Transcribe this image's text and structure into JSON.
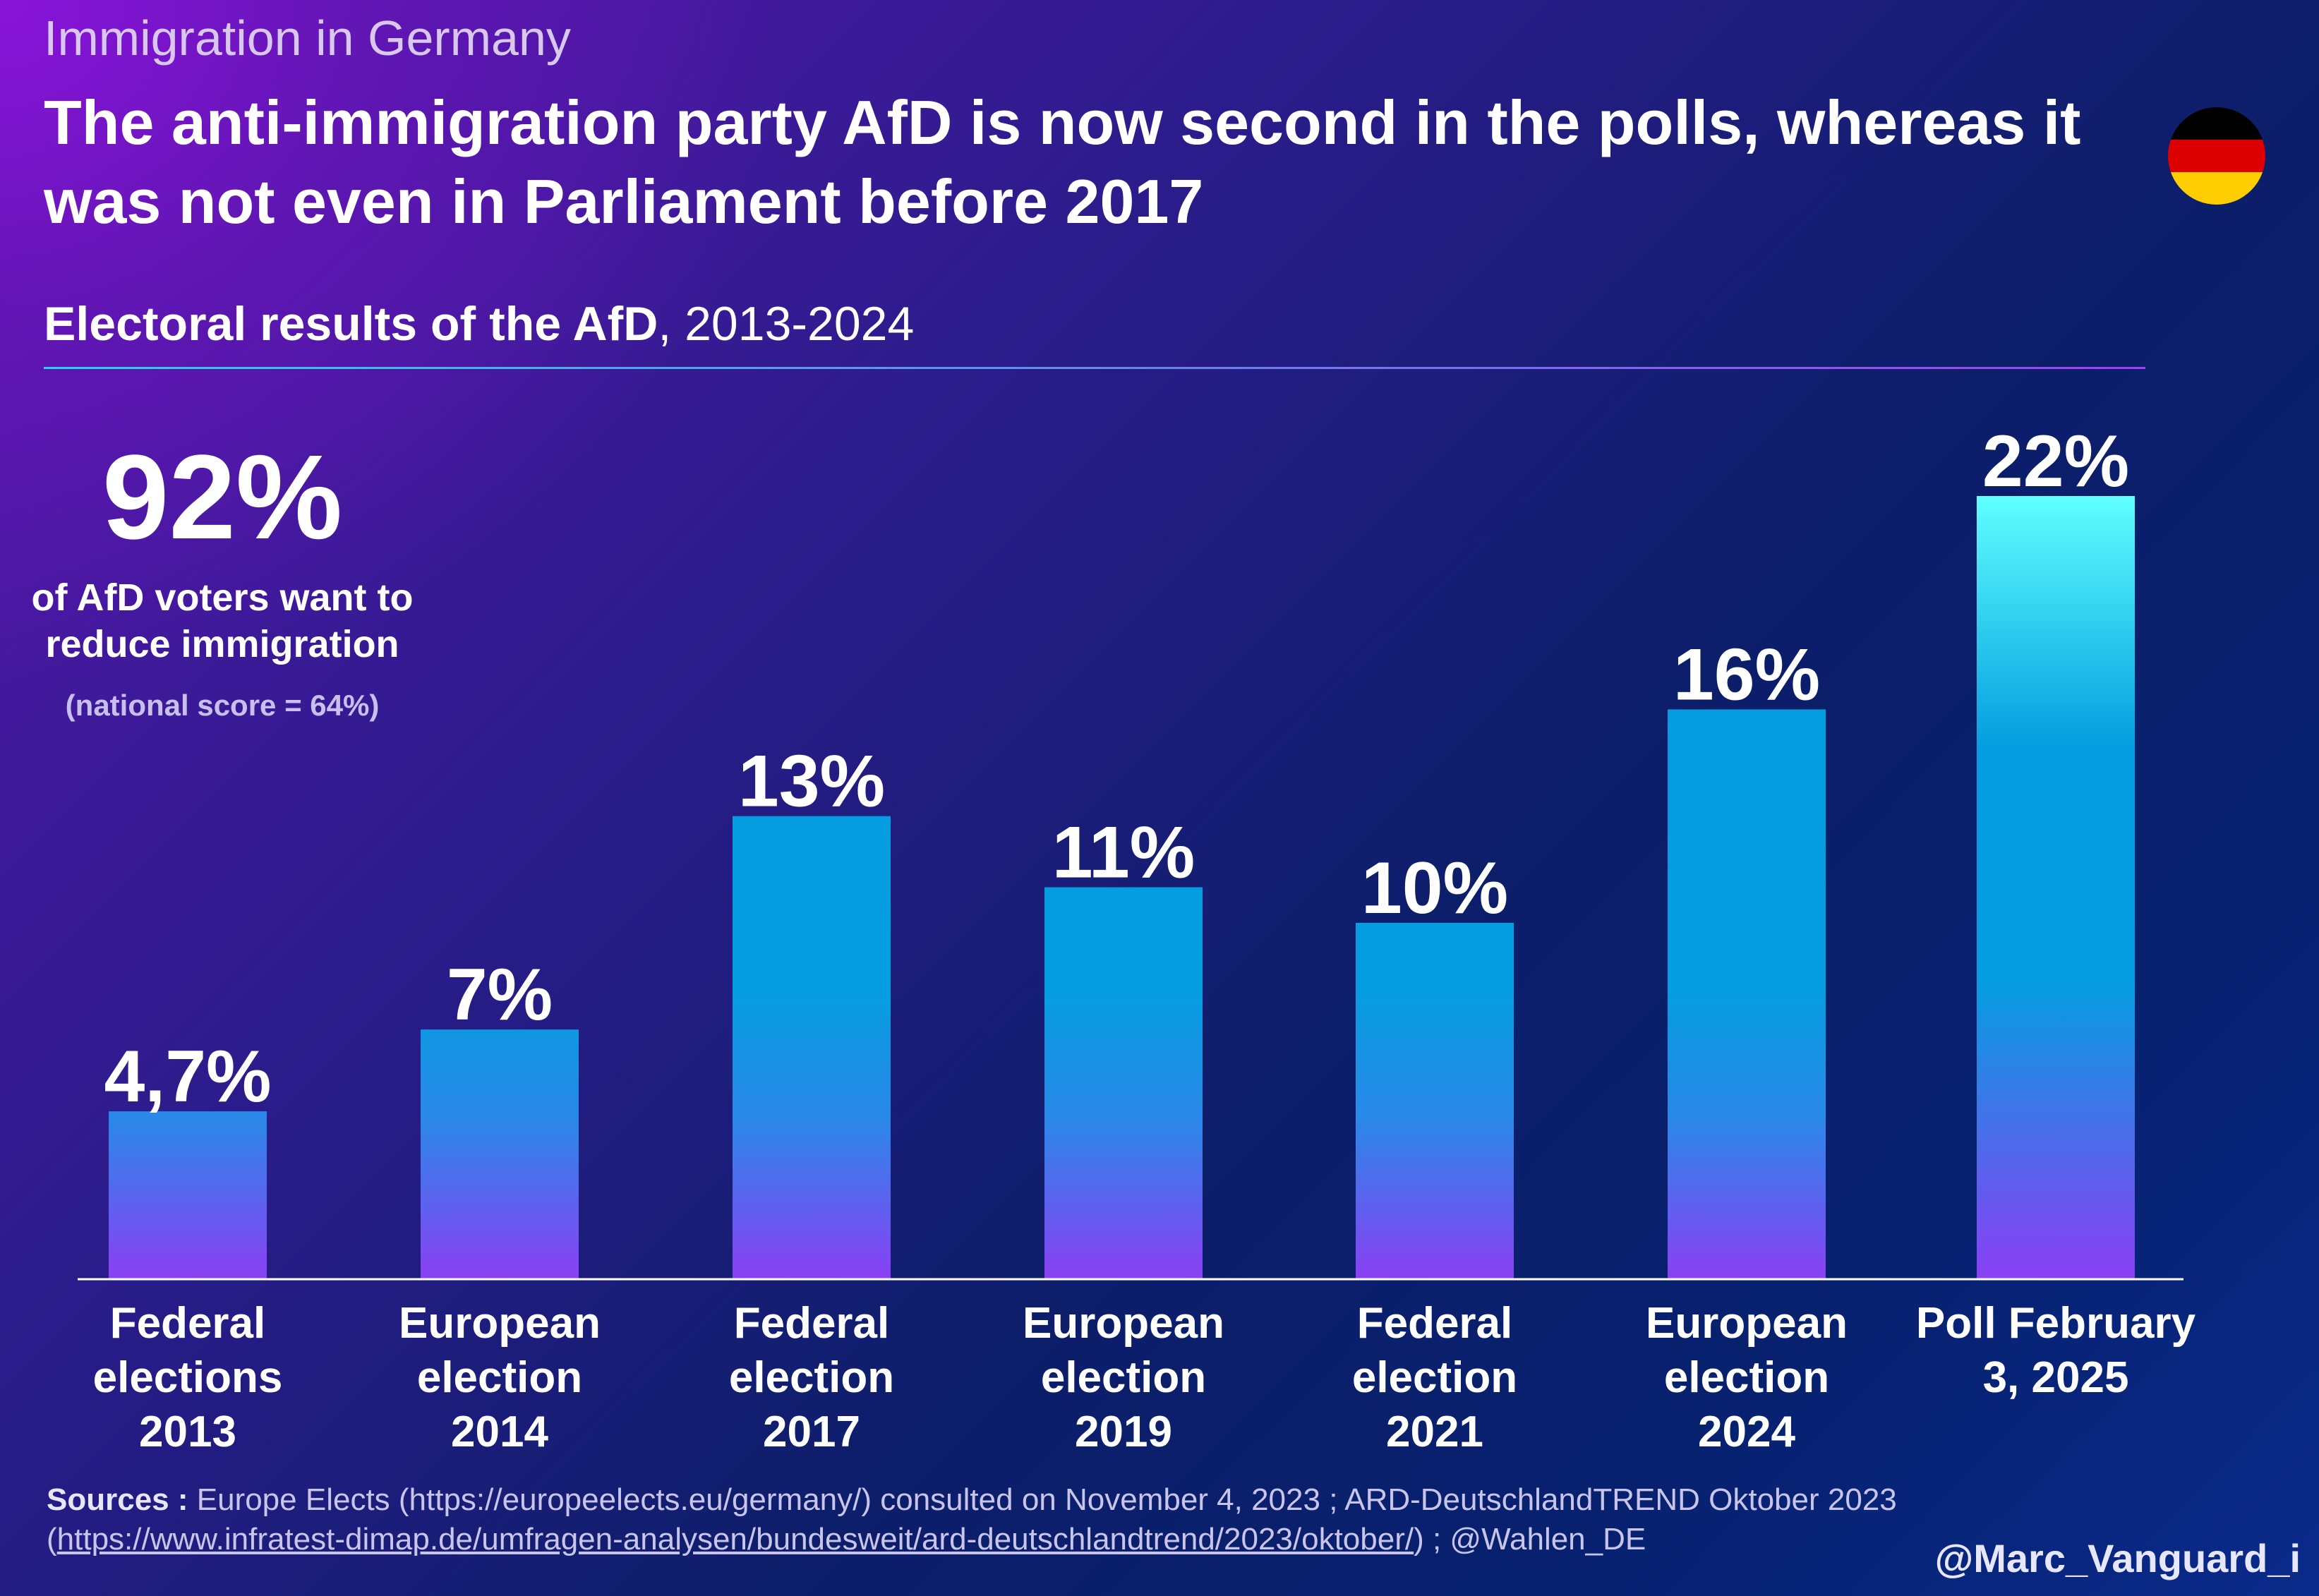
{
  "supertitle": "Immigration in Germany",
  "headline": "The anti-immigration party AfD is now second in the polls, whereas it was not even in Parliament before 2017",
  "flag_icon": "germany-flag-icon",
  "flag_colors": [
    "#000000",
    "#dd0000",
    "#ffce00"
  ],
  "subtitle_bold": "Electoral results of the AfD",
  "subtitle_rest": ", 2013-2024",
  "callout": {
    "value": "92%",
    "text": "of AfD voters want to reduce immigration",
    "note": "(national score = 64%)"
  },
  "sources": {
    "label": "Sources :",
    "text1": " Europe Elects (https://europeelects.eu/germany/) consulted on November 4, 2023 ; ARD-DeutschlandTREND Oktober 2023 (",
    "link": "https://www.infratest-dimap.de/umfragen-analysen/bundesweit/ard-deutschlandtrend/2023/oktober/",
    "text2": ") ; @Wahlen_DE"
  },
  "handle": "@Marc_Vanguard_i",
  "colors": {
    "bar_top": "#049ee0",
    "bar_bottom": "#8a40f4",
    "last_bar_top": "#60ffff"
  },
  "chart_data": {
    "type": "bar",
    "title": "Electoral results of the AfD, 2013-2024",
    "categories": [
      [
        "Federal",
        "elections",
        "2013"
      ],
      [
        "European",
        "election",
        "2014"
      ],
      [
        "Federal",
        "election",
        "2017"
      ],
      [
        "European",
        "election",
        "2019"
      ],
      [
        "Federal",
        "election",
        "2021"
      ],
      [
        "European",
        "election",
        "2024"
      ],
      [
        "Poll February",
        "3, 2025"
      ]
    ],
    "values": [
      4.7,
      7,
      13,
      11,
      10,
      16,
      22
    ],
    "labels": [
      "4,7%",
      "7%",
      "13%",
      "11%",
      "10%",
      "16%",
      "22%"
    ],
    "ylim": [
      0,
      22
    ],
    "grid": false
  }
}
